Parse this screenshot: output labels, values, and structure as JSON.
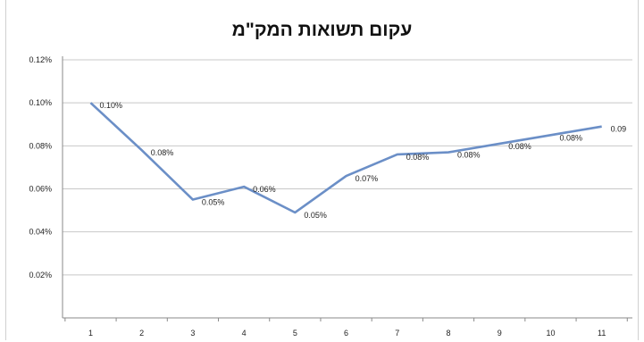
{
  "chart_data": {
    "type": "line",
    "title": "עקום תשואות המק\"מ",
    "xlabel": "",
    "ylabel": "",
    "categories": [
      "1",
      "2",
      "3",
      "4",
      "5",
      "6",
      "7",
      "8",
      "9",
      "10",
      "11"
    ],
    "series": [
      {
        "values": [
          0.1,
          0.078,
          0.055,
          0.061,
          0.049,
          0.066,
          0.076,
          0.077,
          0.081,
          0.085,
          0.089
        ],
        "data_labels": [
          "0.10%",
          "0.08%",
          "0.05%",
          "0.06%",
          "0.05%",
          "0.07%",
          "0.08%",
          "0.08%",
          "0.08%",
          "0.08%",
          "0.09"
        ]
      }
    ],
    "y_ticks": [
      "0.12%",
      "0.10%",
      "0.08%",
      "0.06%",
      "0.04%",
      "0.02%"
    ],
    "ylim": [
      0,
      0.12
    ],
    "grid": true,
    "legend": "none",
    "colors": {
      "line": "#6b8fc7",
      "grid": "#c8c8c8",
      "axis": "#8a8a8a"
    }
  }
}
